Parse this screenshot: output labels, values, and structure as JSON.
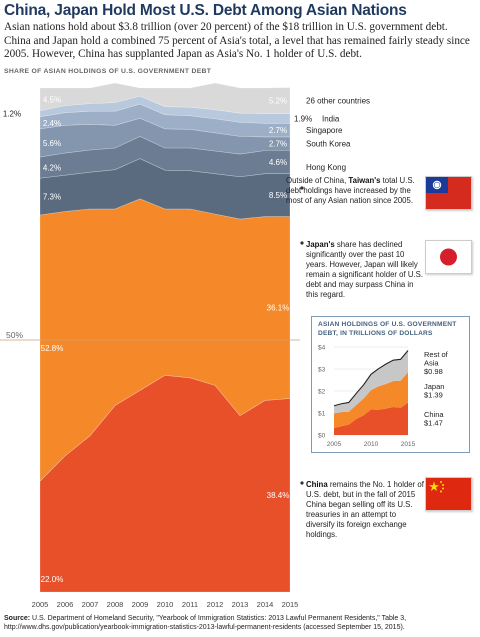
{
  "title": "China, Japan Hold Most U.S. Debt Among Asian Nations",
  "intro": "Asian nations hold about $3.8 trillion (over 20 percent) of the $18 trillion in U.S. government debt. China and Japan hold a combined 75 percent of Asia's total, a level that has remained fairly steady since 2005. However, China has supplanted Japan as Asia's No. 1 holder of U.S. debt.",
  "subhead": "SHARE OF ASIAN HOLDINGS OF U.S. GOVERNMENT DEBT",
  "annotations": {
    "taiwan": {
      "bold": "Taiwan's",
      "pre": "Outside of China, ",
      "post": " total U.S. debt holdings have increased by the most of any Asian nation since 2005."
    },
    "japan": {
      "bold": "Japan's",
      "post": " share has declined significantly over the past 10 years. However, Japan will likely remain a significant holder of U.S. debt and may surpass China in this regard."
    },
    "china": {
      "bold": "China",
      "post": " remains the No. 1 holder of U.S. debt, but in the fall of 2015 China began selling off its U.S. treasuries in an attempt to diversify its foreign exchange holdings."
    }
  },
  "source": {
    "label": "Source:",
    "text": " U.S. Department of Homeland Security, \"Yearbook of Immigration Statistics: 2013 Lawful Permanent Residents,\" Table 3, http://www.dhs.gov/publication/yearbook-immigration-statistics-2013-lawful-permanent-residents (accessed September 15, 2015)."
  },
  "colors": {
    "china": "#e8502a",
    "japan": "#f5892a",
    "taiwan": "#5a6b80",
    "hongkong": "#6c7d93",
    "southkorea": "#8496ad",
    "singapore": "#9dafc6",
    "india": "#b8c8dd",
    "other": "#d9d9d9",
    "gridline": "#c9a27a",
    "inset_border": "#7f9ab5"
  },
  "chart_data": [
    {
      "type": "area",
      "title": "SHARE OF ASIAN HOLDINGS OF U.S. GOVERNMENT DEBT",
      "stacked": true,
      "x": [
        "2005",
        "2006",
        "2007",
        "2008",
        "2009",
        "2010",
        "2011",
        "2012",
        "2013",
        "2014",
        "2015"
      ],
      "ylim": [
        0,
        100
      ],
      "reference_line": {
        "value": 50,
        "label": "50%"
      },
      "series": [
        {
          "name": "China",
          "values": [
            22.0,
            27.0,
            31.0,
            37.0,
            40.0,
            43.0,
            42.5,
            41.0,
            35.0,
            38.0,
            38.4
          ]
        },
        {
          "name": "Japan",
          "values": [
            52.8,
            48.5,
            45.0,
            39.0,
            38.0,
            33.0,
            33.5,
            34.0,
            39.0,
            36.5,
            36.1
          ]
        },
        {
          "name": "Taiwan",
          "values": [
            7.3,
            7.2,
            7.3,
            7.8,
            8.0,
            7.7,
            7.6,
            8.0,
            8.4,
            8.5,
            8.5
          ]
        },
        {
          "name": "Hong Kong",
          "values": [
            4.2,
            4.4,
            4.4,
            4.3,
            4.4,
            4.4,
            4.5,
            4.5,
            4.5,
            4.6,
            4.6
          ]
        },
        {
          "name": "South Korea",
          "values": [
            5.6,
            5.5,
            5.1,
            4.5,
            3.6,
            3.8,
            3.7,
            3.6,
            3.5,
            2.7,
            2.7
          ]
        },
        {
          "name": "Singapore",
          "values": [
            2.4,
            2.5,
            2.6,
            2.8,
            2.8,
            2.8,
            2.7,
            2.8,
            2.8,
            2.7,
            2.7
          ]
        },
        {
          "name": "India",
          "values": [
            1.2,
            1.4,
            1.5,
            1.7,
            1.6,
            1.6,
            1.7,
            1.8,
            1.8,
            1.9,
            1.9
          ]
        },
        {
          "name": "26 other countries",
          "values": [
            4.5,
            3.5,
            3.1,
            3.9,
            1.6,
            3.7,
            3.8,
            5.3,
            5.0,
            5.1,
            5.2
          ]
        }
      ],
      "value_labels": [
        {
          "series": "China",
          "x": "2005",
          "text": "22.0%"
        },
        {
          "series": "China",
          "x": "2015",
          "text": "38.4%"
        },
        {
          "series": "Japan",
          "x": "2005",
          "text": "52.8%"
        },
        {
          "series": "Japan",
          "x": "2015",
          "text": "36.1%"
        },
        {
          "series": "Taiwan",
          "x": "2005",
          "text": "7.3%"
        },
        {
          "series": "Taiwan",
          "x": "2015",
          "text": "8.5%"
        },
        {
          "series": "Hong Kong",
          "x": "2005",
          "text": "4.2%"
        },
        {
          "series": "Hong Kong",
          "x": "2015",
          "text": "4.6%"
        },
        {
          "series": "South Korea",
          "x": "2005",
          "text": "5.6%"
        },
        {
          "series": "South Korea",
          "x": "2015",
          "text": "2.7%"
        },
        {
          "series": "Singapore",
          "x": "2005",
          "text": "2.4%"
        },
        {
          "series": "Singapore",
          "x": "2015",
          "text": "2.7%"
        },
        {
          "series": "India",
          "x": "2005",
          "text": "1.2%"
        },
        {
          "series": "India",
          "x": "2015",
          "text": "1.9%"
        },
        {
          "series": "26 other countries",
          "x": "2005",
          "text": "4.5%"
        },
        {
          "series": "26 other countries",
          "x": "2015",
          "text": "5.2%"
        }
      ],
      "right_labels": [
        "26 other countries",
        "India",
        "Singapore",
        "South Korea",
        "Hong Kong"
      ]
    },
    {
      "type": "area",
      "title": "ASIAN HOLDINGS OF U.S. GOVERNMENT DEBT, IN TRILLIONS OF DOLLARS",
      "stacked": true,
      "x": [
        2005,
        2006,
        2007,
        2008,
        2009,
        2010,
        2011,
        2012,
        2013,
        2014,
        2015
      ],
      "xticks": [
        "2005",
        "2010",
        "2015"
      ],
      "yticks": [
        "$0",
        "$1",
        "$2",
        "$3",
        "$4"
      ],
      "ylim": [
        0,
        4
      ],
      "series": [
        {
          "name": "China",
          "value_label": "$1.47",
          "values": [
            0.31,
            0.4,
            0.48,
            0.73,
            0.89,
            1.16,
            1.15,
            1.2,
            1.27,
            1.24,
            1.47
          ]
        },
        {
          "name": "Japan",
          "value_label": "$1.39",
          "values": [
            0.67,
            0.64,
            0.58,
            0.63,
            0.77,
            0.88,
            1.06,
            1.12,
            1.18,
            1.23,
            1.39
          ]
        },
        {
          "name": "Rest of Asia",
          "value_label": "$0.98",
          "values": [
            0.35,
            0.38,
            0.42,
            0.53,
            0.62,
            0.72,
            0.8,
            0.9,
            0.95,
            0.97,
            0.98
          ]
        }
      ]
    }
  ]
}
